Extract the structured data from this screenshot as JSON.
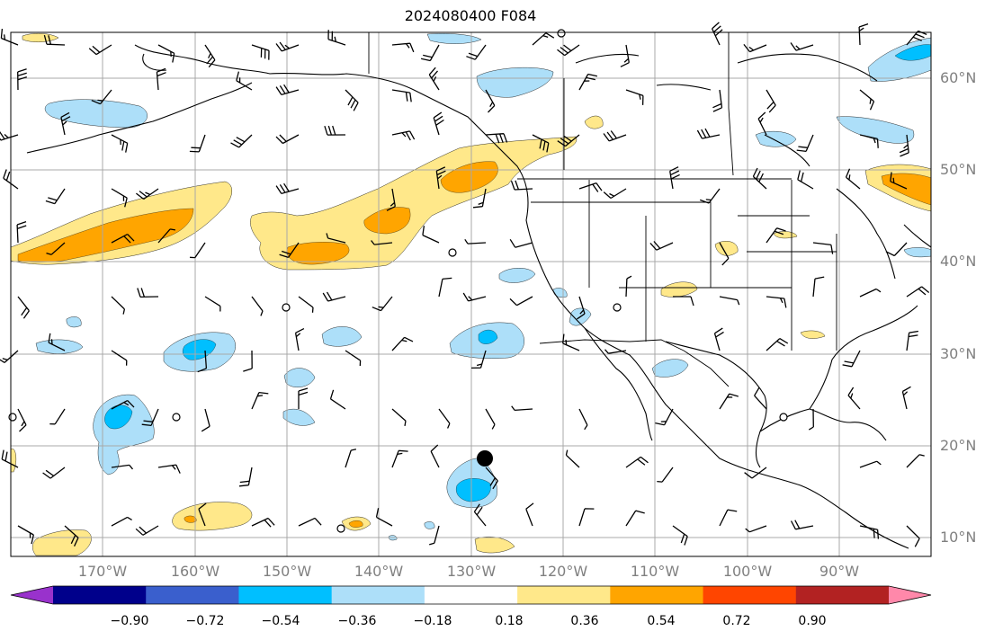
{
  "title": "2024080400 F084",
  "map": {
    "projection": "equirectangular",
    "lon_range": [
      -180,
      -80
    ],
    "lat_range": [
      8,
      65
    ],
    "gridlines": true
  },
  "lat_labels": [
    "60°N",
    "50°N",
    "40°N",
    "30°N",
    "20°N",
    "10°N"
  ],
  "lon_labels": [
    "170°W",
    "160°W",
    "150°W",
    "140°W",
    "130°W",
    "120°W",
    "110°W",
    "100°W",
    "90°W"
  ],
  "colorbar": {
    "orientation": "horizontal",
    "extend": "both",
    "colors": [
      "#9932CC",
      "#00008B",
      "#3A5FCD",
      "#00BFFF",
      "#ADDFF9",
      "#FFFFFF",
      "#FFE88A",
      "#FFA500",
      "#FF4500",
      "#B22222",
      "#FF88AA"
    ],
    "ticks": [
      "−0.90",
      "−0.72",
      "−0.54",
      "−0.36",
      "−0.18",
      "0.18",
      "0.36",
      "0.54",
      "0.72",
      "0.90"
    ]
  },
  "storm_marker": {
    "lon": -129,
    "lat": 18.5,
    "color": "#000000"
  },
  "chart_data": {
    "type": "heatmap",
    "title": "2024080400 F084",
    "levels": [
      -0.9,
      -0.72,
      -0.54,
      -0.36,
      -0.18,
      0.18,
      0.36,
      0.54,
      0.72,
      0.9
    ],
    "features": [
      {
        "kind": "positive_anomaly",
        "category": 0.36,
        "region": "band from 180°W 42°N to 126°W 52°N"
      },
      {
        "kind": "positive_anomaly",
        "category": 0.36,
        "region": "Great Lakes / Hudson Bay 46–51°N 85–80°W"
      },
      {
        "kind": "positive_anomaly",
        "category": 0.18,
        "region": "tropical east Pacific 10–13°N 160–140°W"
      },
      {
        "kind": "negative_anomaly",
        "category": -0.36,
        "region": "near 129°W 16°N around storm center"
      },
      {
        "kind": "negative_anomaly",
        "category": -0.36,
        "region": "near 169°W 23°N"
      },
      {
        "kind": "negative_anomaly",
        "category": -0.36,
        "region": "near 152°W 31°N"
      },
      {
        "kind": "negative_anomaly",
        "category": -0.36,
        "region": "near 131°W 32°N"
      }
    ]
  }
}
